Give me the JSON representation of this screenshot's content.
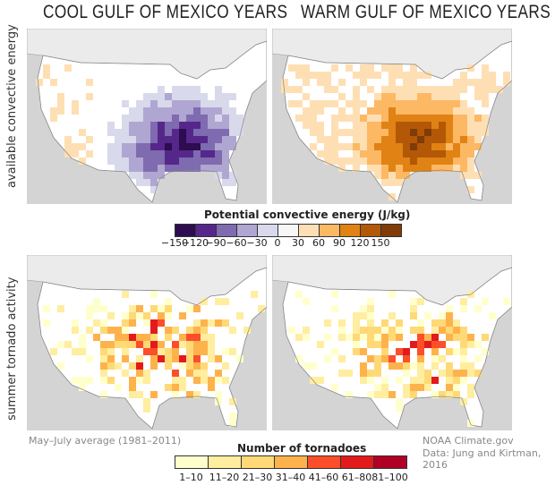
{
  "titles": {
    "left": "COOL GULF OF MEXICO YEARS",
    "right": "WARM GULF OF MEXICO YEARS"
  },
  "row_labels": {
    "top": "available convective energy",
    "bottom": "summer tornado activity"
  },
  "legend_energy": {
    "title": "Potential convective energy (J/kg)",
    "labels": [
      "−150",
      "−120",
      "−90",
      "−60",
      "−30",
      "0",
      "30",
      "60",
      "90",
      "120",
      "150"
    ],
    "colors": [
      "#2d0c4f",
      "#55278a",
      "#7f6baf",
      "#b0a6d2",
      "#d8d9eb",
      "#f7f7f7",
      "#fedfb4",
      "#fdb864",
      "#e08214",
      "#b35806",
      "#7f3b08"
    ]
  },
  "legend_tornado": {
    "title": "Number of tornadoes",
    "labels": [
      "1–10",
      "11–20",
      "21–30",
      "31–40",
      "41–60",
      "61–80",
      "81–100"
    ],
    "colors": [
      "#ffffcc",
      "#ffeda0",
      "#fed976",
      "#feb24c",
      "#fc4e2a",
      "#e31a1c",
      "#b10026"
    ]
  },
  "notes": {
    "period": "May–July average (1981–2011)",
    "credit": "NOAA Climate.gov",
    "source": "Data: Jung and Kirtman, 2016"
  }
}
